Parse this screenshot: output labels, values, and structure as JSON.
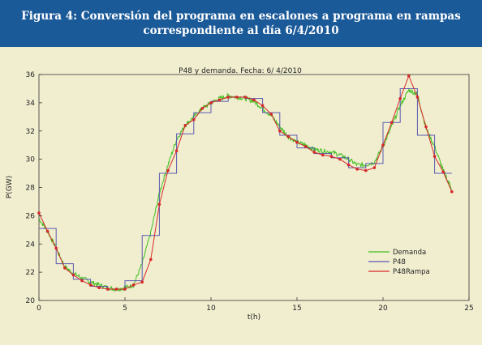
{
  "figure": {
    "title_line1": "Figura 4: Conversión del programa en escalones a programa en rampas",
    "title_line2": "correspondiente al día 6/4/2010"
  },
  "colors": {
    "banner": "#1b5a99",
    "panel_background": "#f1eed0",
    "Demanda": "#3fbf1e",
    "P48": "#5959b0",
    "P48Rampa": "#d62828"
  },
  "chart_data": {
    "type": "line",
    "title": "P48 y demanda. Fecha:  6/ 4/2010",
    "xlabel": "t(h)",
    "ylabel": "P(GW)",
    "xlim": [
      0,
      25
    ],
    "ylim": [
      20,
      36
    ],
    "xticks": [
      "0",
      "5",
      "10",
      "15",
      "20",
      "25"
    ],
    "yticks": [
      "20",
      "22",
      "24",
      "26",
      "28",
      "30",
      "32",
      "34",
      "36"
    ],
    "grid": false,
    "legend_position": "bottom-right",
    "series": [
      {
        "name": "Demanda",
        "kind": "noisy-line",
        "x": [
          0,
          0.5,
          1,
          1.5,
          2,
          2.5,
          3,
          3.5,
          4,
          4.5,
          5,
          5.5,
          6,
          6.5,
          7,
          7.5,
          8,
          8.5,
          9,
          9.5,
          10,
          10.5,
          11,
          11.5,
          12,
          12.5,
          13,
          13.5,
          14,
          14.5,
          15,
          15.5,
          16,
          16.5,
          17,
          17.5,
          18,
          18.5,
          19,
          19.5,
          20,
          20.5,
          21,
          21.5,
          22,
          22.5,
          23,
          23.5,
          24
        ],
        "y": [
          25.8,
          24.9,
          23.7,
          22.4,
          21.9,
          21.6,
          21.3,
          21.1,
          20.9,
          20.8,
          20.9,
          21.1,
          22.6,
          24.8,
          27.6,
          29.6,
          31.4,
          32.4,
          33.0,
          33.6,
          34.0,
          34.3,
          34.5,
          34.4,
          34.3,
          34.1,
          33.6,
          33.1,
          32.3,
          31.6,
          31.2,
          31.0,
          30.7,
          30.6,
          30.5,
          30.3,
          30.0,
          29.6,
          29.6,
          29.8,
          30.9,
          32.3,
          33.8,
          34.9,
          34.6,
          32.2,
          30.9,
          29.2,
          27.9
        ]
      },
      {
        "name": "P48",
        "kind": "step",
        "x": [
          0,
          1,
          2,
          3,
          4,
          5,
          6,
          7,
          8,
          9,
          10,
          11,
          12,
          13,
          14,
          15,
          16,
          17,
          18,
          19,
          20,
          21,
          22,
          23,
          24
        ],
        "y": [
          25.1,
          22.6,
          21.5,
          21.0,
          20.8,
          21.4,
          24.6,
          29.0,
          31.8,
          33.3,
          34.1,
          34.4,
          34.3,
          33.3,
          31.7,
          30.8,
          30.4,
          30.1,
          29.4,
          29.7,
          32.6,
          35.0,
          31.7,
          29.0,
          29.0
        ]
      },
      {
        "name": "P48Rampa",
        "kind": "ramp",
        "x": [
          0,
          0.5,
          1,
          1.5,
          2,
          2.5,
          3,
          3.5,
          4,
          4.5,
          5,
          5.5,
          6,
          6.5,
          7,
          7.5,
          8,
          8.5,
          9,
          9.5,
          10,
          10.5,
          11,
          11.5,
          12,
          12.5,
          13,
          13.5,
          14,
          14.5,
          15,
          15.5,
          16,
          16.5,
          17,
          17.5,
          18,
          18.5,
          19,
          19.5,
          20,
          20.5,
          21,
          21.5,
          22,
          22.5,
          23,
          23.5,
          24
        ],
        "y": [
          26.2,
          24.9,
          23.7,
          22.3,
          21.8,
          21.4,
          21.1,
          20.9,
          20.8,
          20.8,
          20.8,
          21.1,
          21.3,
          22.9,
          26.8,
          29.2,
          30.6,
          32.4,
          32.8,
          33.6,
          34.0,
          34.2,
          34.4,
          34.4,
          34.4,
          34.2,
          33.8,
          33.2,
          32.0,
          31.6,
          31.2,
          30.9,
          30.5,
          30.3,
          30.2,
          30.0,
          29.6,
          29.3,
          29.2,
          29.4,
          31.0,
          32.6,
          34.3,
          35.9,
          34.4,
          32.3,
          30.2,
          29.1,
          27.7
        ]
      }
    ]
  }
}
